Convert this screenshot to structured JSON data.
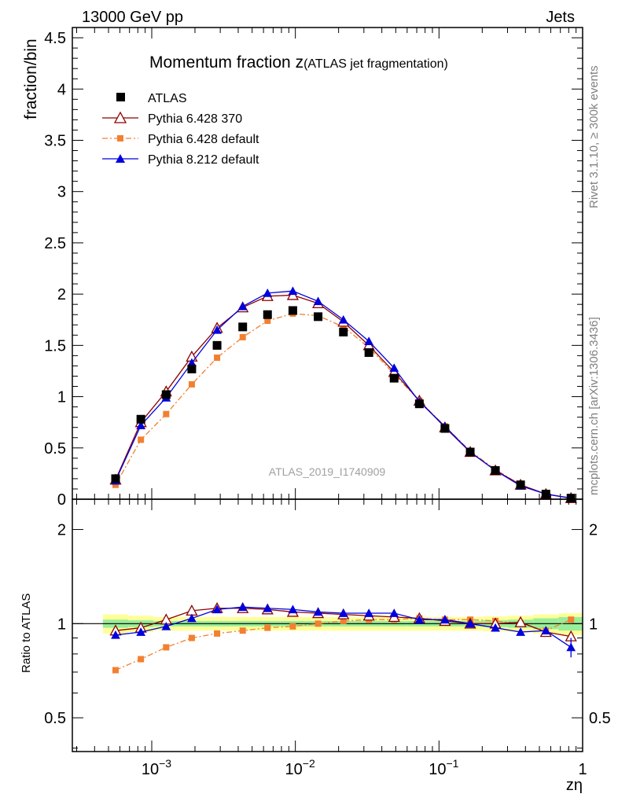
{
  "header": {
    "left": "13000 GeV pp",
    "right": "Jets"
  },
  "side_labels": {
    "rivet": "Rivet 3.1.10, ≥ 300k events",
    "mcplots": "mcplots.cern.ch [arXiv:1306.3436]"
  },
  "chart_data": [
    {
      "type": "scatter",
      "panel": "main",
      "title_main": "Momentum fraction z",
      "title_sub": "(ATLAS jet fragmentation)",
      "watermark": "ATLAS_2019_I1740909",
      "ylabel": "fraction/bin",
      "xlabel": "zη",
      "xscale": "log",
      "xlim": [
        0.00028,
        1.0
      ],
      "ylim": [
        0,
        4.6
      ],
      "yticks": [
        0,
        0.5,
        1,
        1.5,
        2,
        2.5,
        3,
        3.5,
        4,
        4.5
      ],
      "ytick_labels": [
        "0",
        "0.5",
        "1",
        "1.5",
        "2",
        "2.5",
        "3",
        "3.5",
        "4",
        "4.5"
      ],
      "xticks": [
        0.001,
        0.01,
        0.1,
        1
      ],
      "xtick_labels": [
        {
          "base": "10",
          "exp": "−3"
        },
        {
          "base": "10",
          "exp": "−2"
        },
        {
          "base": "10",
          "exp": "−1"
        },
        {
          "base": "1",
          "exp": ""
        }
      ],
      "x": [
        0.00056,
        0.00084,
        0.00126,
        0.0019,
        0.00285,
        0.0043,
        0.0064,
        0.0096,
        0.0144,
        0.0216,
        0.0325,
        0.0487,
        0.073,
        0.11,
        0.165,
        0.247,
        0.37,
        0.555,
        0.83
      ],
      "series": [
        {
          "name": "ATLAS",
          "color": "#000000",
          "marker": "square",
          "line": "none",
          "values": [
            0.2,
            0.78,
            1.02,
            1.27,
            1.5,
            1.68,
            1.8,
            1.84,
            1.78,
            1.63,
            1.43,
            1.18,
            0.93,
            0.69,
            0.46,
            0.28,
            0.14,
            0.05,
            0.01
          ]
        },
        {
          "name": "Pythia 6.428 370",
          "color": "#8b0000",
          "marker": "triangle-open",
          "line": "solid",
          "values": [
            0.19,
            0.75,
            1.05,
            1.39,
            1.67,
            1.87,
            1.98,
            1.99,
            1.91,
            1.73,
            1.5,
            1.24,
            0.96,
            0.7,
            0.46,
            0.28,
            0.14,
            0.05,
            0.01
          ]
        },
        {
          "name": "Pythia 6.428 default",
          "color": "#f28030",
          "marker": "square-small",
          "line": "dashdot",
          "values": [
            0.14,
            0.58,
            0.83,
            1.12,
            1.38,
            1.58,
            1.74,
            1.81,
            1.79,
            1.68,
            1.48,
            1.22,
            0.96,
            0.71,
            0.47,
            0.29,
            0.14,
            0.05,
            0.01
          ]
        },
        {
          "name": "Pythia 8.212 default",
          "color": "#0000dd",
          "marker": "triangle-filled",
          "line": "solid",
          "values": [
            0.18,
            0.72,
            0.99,
            1.33,
            1.65,
            1.88,
            2.01,
            2.03,
            1.93,
            1.75,
            1.54,
            1.28,
            0.95,
            0.71,
            0.46,
            0.28,
            0.13,
            0.05,
            0.01
          ]
        }
      ]
    },
    {
      "type": "scatter",
      "panel": "ratio",
      "ylabel": "Ratio to ATLAS",
      "xscale": "log",
      "yscale": "log",
      "xlim": [
        0.00028,
        1.0
      ],
      "ylim": [
        0.39,
        2.5
      ],
      "yticks": [
        0.5,
        1,
        2
      ],
      "ytick_labels": [
        "0.5",
        "1",
        "2"
      ],
      "x": [
        0.00056,
        0.00084,
        0.00126,
        0.0019,
        0.00285,
        0.0043,
        0.0064,
        0.0096,
        0.0144,
        0.0216,
        0.0325,
        0.0487,
        0.073,
        0.11,
        0.165,
        0.247,
        0.37,
        0.555,
        0.83
      ],
      "band_inner": [
        0.03,
        0.025,
        0.02,
        0.02,
        0.02,
        0.02,
        0.02,
        0.02,
        0.02,
        0.02,
        0.02,
        0.02,
        0.02,
        0.02,
        0.02,
        0.025,
        0.03,
        0.04,
        0.05
      ],
      "band_outer": [
        0.07,
        0.06,
        0.05,
        0.05,
        0.05,
        0.05,
        0.05,
        0.05,
        0.05,
        0.05,
        0.05,
        0.05,
        0.05,
        0.05,
        0.05,
        0.055,
        0.06,
        0.07,
        0.08
      ],
      "series": [
        {
          "name": "Pythia 6.428 370",
          "color": "#8b0000",
          "marker": "triangle-open",
          "line": "solid",
          "values": [
            0.95,
            0.97,
            1.03,
            1.1,
            1.12,
            1.12,
            1.11,
            1.09,
            1.08,
            1.07,
            1.06,
            1.05,
            1.04,
            1.02,
            1.0,
            1.0,
            1.01,
            0.94,
            0.91
          ]
        },
        {
          "name": "Pythia 6.428 default",
          "color": "#f28030",
          "marker": "square-small",
          "line": "dashdot",
          "values": [
            0.71,
            0.77,
            0.84,
            0.9,
            0.93,
            0.95,
            0.97,
            0.98,
            1.0,
            1.02,
            1.03,
            1.03,
            1.04,
            1.03,
            1.03,
            1.02,
            1.0,
            0.95,
            1.03
          ]
        },
        {
          "name": "Pythia 8.212 default",
          "color": "#0000dd",
          "marker": "triangle-filled",
          "line": "solid",
          "values": [
            0.92,
            0.94,
            0.98,
            1.04,
            1.11,
            1.13,
            1.12,
            1.11,
            1.09,
            1.08,
            1.08,
            1.08,
            1.03,
            1.03,
            1.0,
            0.97,
            0.94,
            0.95,
            0.84
          ]
        }
      ]
    }
  ]
}
